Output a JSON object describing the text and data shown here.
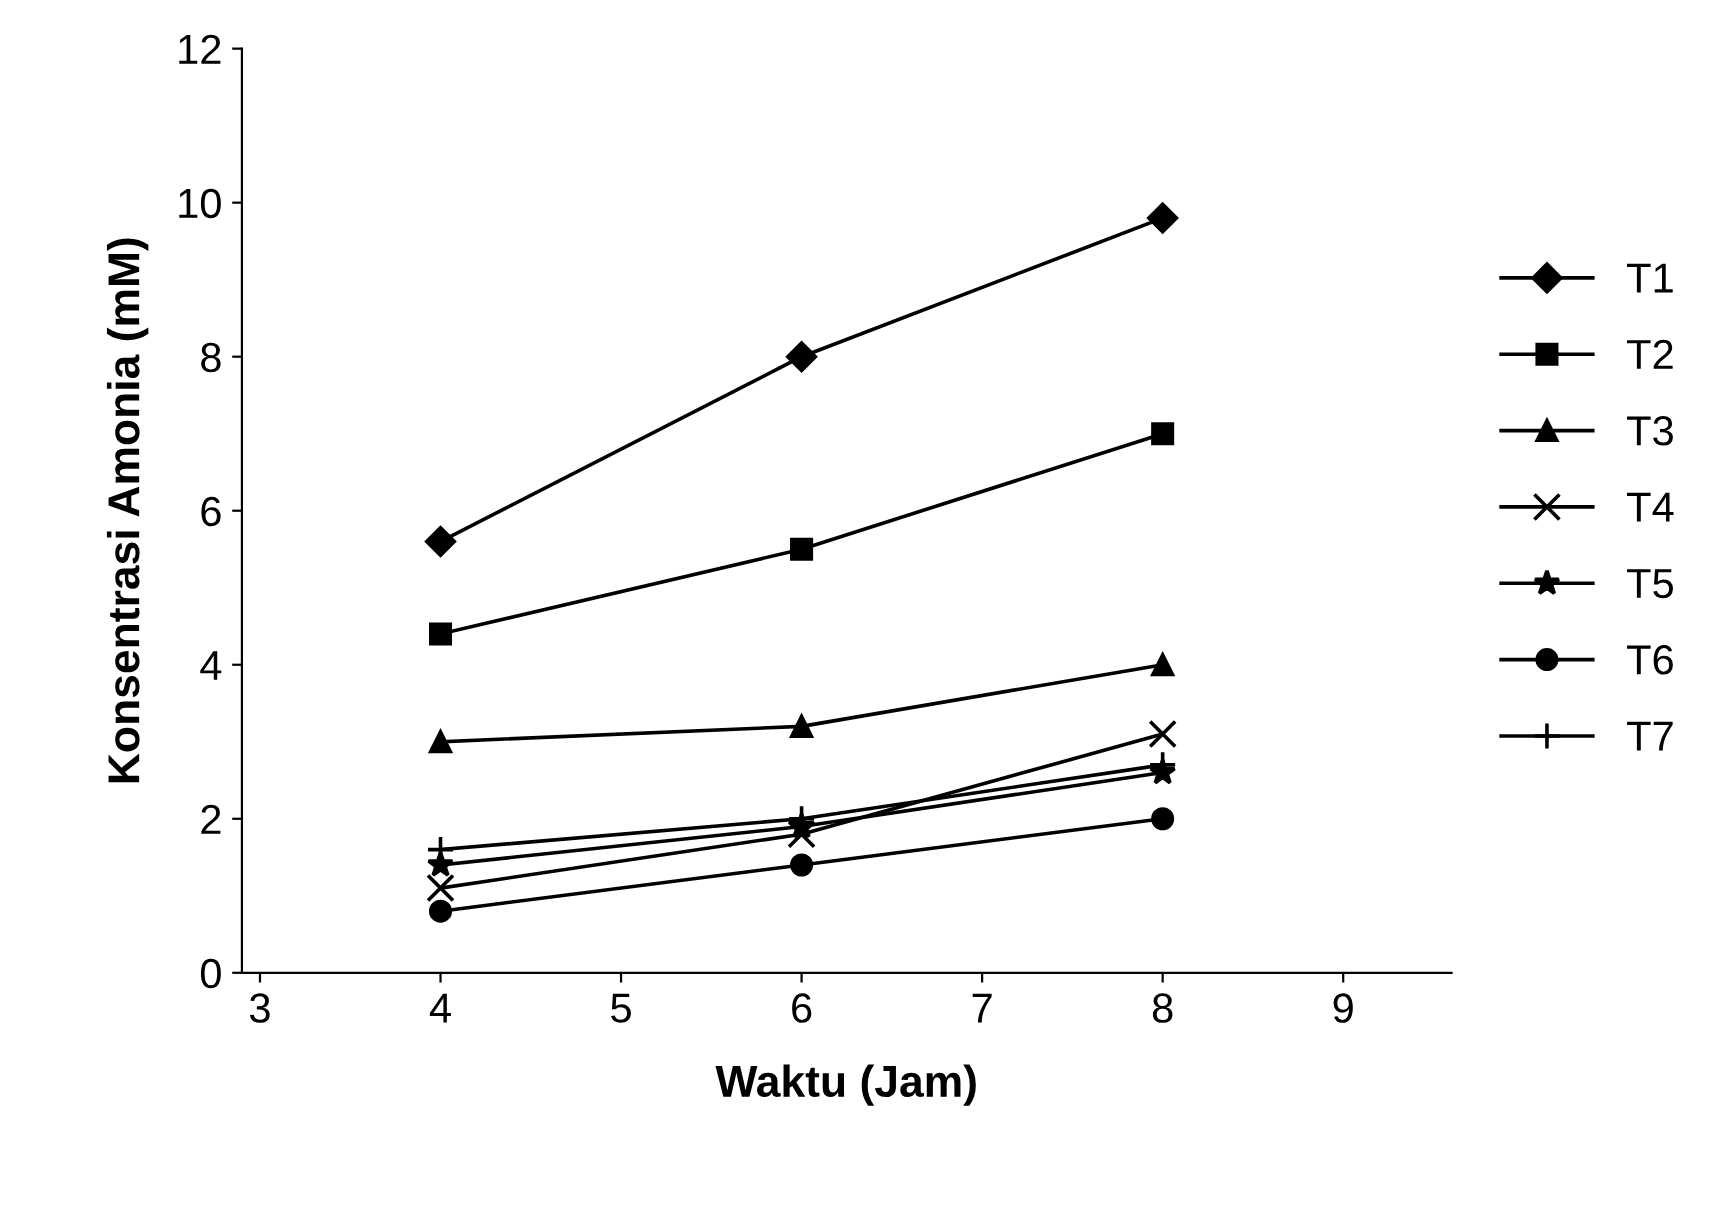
{
  "chart_data": {
    "type": "line",
    "xlabel": "Waktu (Jam)",
    "ylabel": "Konsentrasi Amonia (mM)",
    "x": [
      4,
      6,
      8
    ],
    "series": [
      {
        "name": "T1",
        "color": "#000000",
        "marker": "diamond",
        "values": [
          5.6,
          8.0,
          9.8
        ]
      },
      {
        "name": "T2",
        "color": "#000000",
        "marker": "square",
        "values": [
          4.4,
          5.5,
          7.0
        ]
      },
      {
        "name": "T3",
        "color": "#000000",
        "marker": "triangle",
        "values": [
          3.0,
          3.2,
          4.0
        ]
      },
      {
        "name": "T4",
        "color": "#000000",
        "marker": "cross",
        "values": [
          1.1,
          1.8,
          3.1
        ]
      },
      {
        "name": "T5",
        "color": "#000000",
        "marker": "star",
        "values": [
          1.4,
          1.9,
          2.6
        ]
      },
      {
        "name": "T6",
        "color": "#000000",
        "marker": "circle",
        "values": [
          0.8,
          1.4,
          2.0
        ]
      },
      {
        "name": "T7",
        "color": "#000000",
        "marker": "plus",
        "values": [
          1.6,
          2.0,
          2.7
        ]
      }
    ],
    "xlim": [
      2.9,
      9.6
    ],
    "ylim": [
      0,
      12
    ],
    "xticks": [
      3,
      4,
      5,
      6,
      7,
      8,
      9
    ],
    "yticks": [
      0,
      2,
      4,
      6,
      8,
      10,
      12
    ],
    "grid": false,
    "legend": "right",
    "line_style": "solid"
  }
}
